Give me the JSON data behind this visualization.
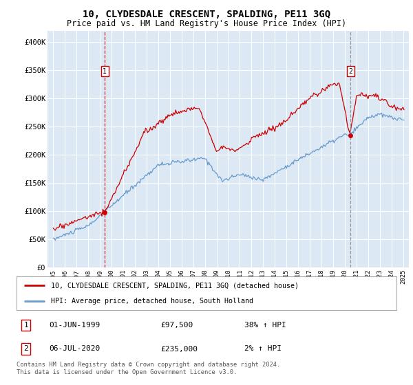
{
  "title": "10, CLYDESDALE CRESCENT, SPALDING, PE11 3GQ",
  "subtitle": "Price paid vs. HM Land Registry's House Price Index (HPI)",
  "legend_line1": "10, CLYDESDALE CRESCENT, SPALDING, PE11 3GQ (detached house)",
  "legend_line2": "HPI: Average price, detached house, South Holland",
  "footer": "Contains HM Land Registry data © Crown copyright and database right 2024.\nThis data is licensed under the Open Government Licence v3.0.",
  "annotation1": {
    "label": "1",
    "date": "01-JUN-1999",
    "price": "£97,500",
    "note": "38% ↑ HPI"
  },
  "annotation2": {
    "label": "2",
    "date": "06-JUL-2020",
    "price": "£235,000",
    "note": "2% ↑ HPI"
  },
  "purchase1_x": 1999.417,
  "purchase1_y": 97500,
  "purchase2_x": 2020.5,
  "purchase2_y": 235000,
  "ylim": [
    0,
    420000
  ],
  "xlim": [
    1994.5,
    2025.5
  ],
  "background_color": "#dce9f5",
  "red_line_color": "#cc0000",
  "blue_line_color": "#6699cc",
  "grid_color": "#ffffff",
  "yticks": [
    0,
    50000,
    100000,
    150000,
    200000,
    250000,
    300000,
    350000,
    400000
  ],
  "ytick_labels": [
    "£0",
    "£50K",
    "£100K",
    "£150K",
    "£200K",
    "£250K",
    "£300K",
    "£350K",
    "£400K"
  ]
}
